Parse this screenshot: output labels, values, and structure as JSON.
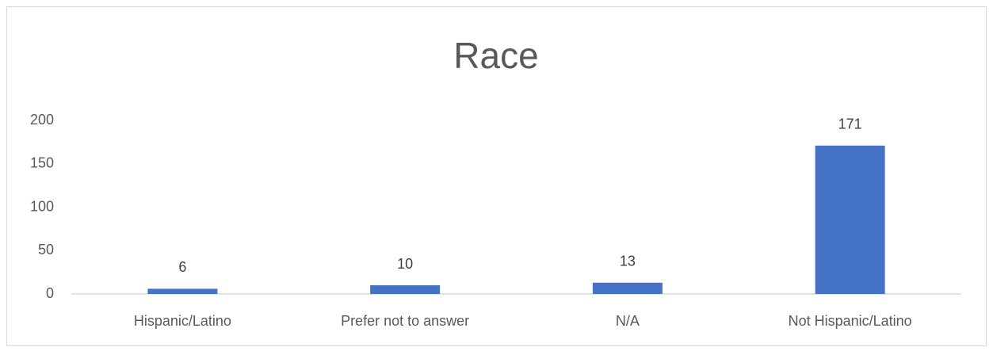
{
  "chart_data": {
    "type": "bar",
    "title": "Race",
    "categories": [
      "Hispanic/Latino",
      "Prefer not to answer",
      "N/A",
      "Not Hispanic/Latino"
    ],
    "values": [
      6,
      10,
      13,
      171
    ],
    "color": "#4472c4",
    "ylim": [
      0,
      200
    ],
    "yticks": [
      0,
      50,
      100,
      150,
      200
    ],
    "grid": false
  }
}
